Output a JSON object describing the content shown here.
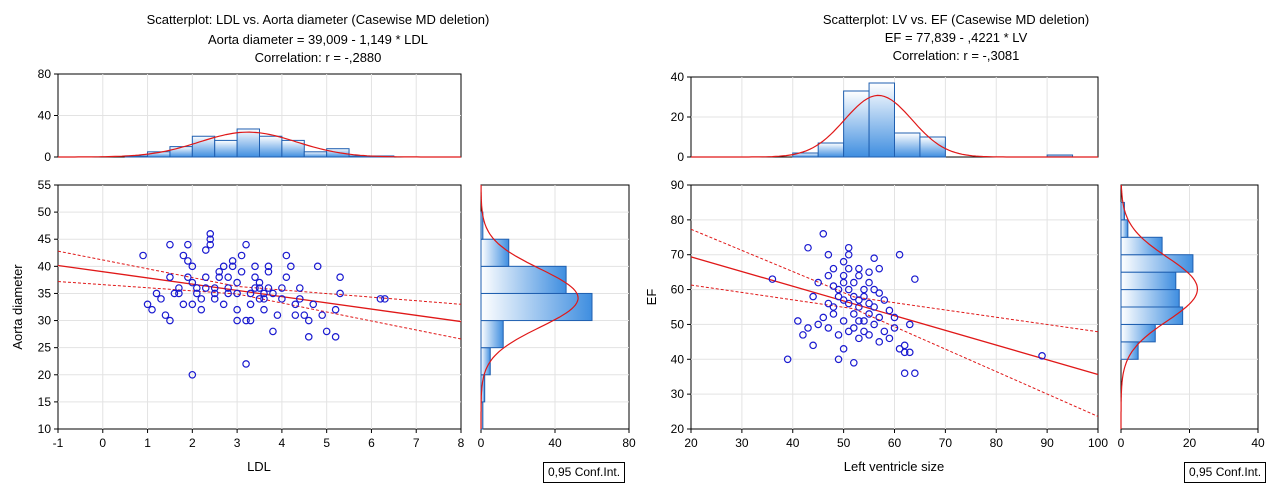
{
  "chart_data": [
    {
      "type": "scatter",
      "title": [
        "Scatterplot: LDL       vs. Aorta diameter (Casewise MD deletion)",
        "Aorta diameter = 39,009 - 1,149  * LDL",
        "Correlation: r = -,2880"
      ],
      "xlabel": "LDL",
      "ylabel": "Aorta diameter",
      "xlim": [
        -1,
        8
      ],
      "ylim": [
        10,
        55
      ],
      "xticks": [
        "-1",
        "0",
        "1",
        "2",
        "3",
        "4",
        "5",
        "6",
        "7",
        "8"
      ],
      "yticks": [
        "10",
        "15",
        "20",
        "25",
        "30",
        "35",
        "40",
        "45",
        "50",
        "55"
      ],
      "regression": {
        "intercept": 39.009,
        "slope": -1.149
      },
      "ci_band": {
        "lower_at_xmin": 37.2,
        "lower_at_xmax": 26.6,
        "upper_at_xmin": 42.8,
        "upper_at_xmax": 33.0,
        "lower_bend_x": 3.0,
        "lower_bend_y": 34.9,
        "upper_bend_x": 3.0,
        "upper_bend_y": 36.3
      },
      "legend": "0,95 Conf.Int.",
      "points": [
        [
          0.9,
          42
        ],
        [
          1.0,
          33
        ],
        [
          1.1,
          32
        ],
        [
          1.2,
          35
        ],
        [
          1.3,
          34
        ],
        [
          1.4,
          31
        ],
        [
          1.5,
          30
        ],
        [
          1.5,
          38
        ],
        [
          1.5,
          44
        ],
        [
          1.6,
          35
        ],
        [
          1.7,
          35
        ],
        [
          1.7,
          36
        ],
        [
          1.8,
          33
        ],
        [
          1.8,
          42
        ],
        [
          1.9,
          44
        ],
        [
          1.9,
          38
        ],
        [
          1.9,
          41
        ],
        [
          2.0,
          20
        ],
        [
          2.0,
          33
        ],
        [
          2.0,
          37
        ],
        [
          2.0,
          40
        ],
        [
          2.1,
          36
        ],
        [
          2.1,
          35
        ],
        [
          2.2,
          32
        ],
        [
          2.2,
          34
        ],
        [
          2.3,
          36
        ],
        [
          2.3,
          38
        ],
        [
          2.3,
          43
        ],
        [
          2.4,
          44
        ],
        [
          2.4,
          45
        ],
        [
          2.4,
          46
        ],
        [
          2.5,
          36
        ],
        [
          2.5,
          35
        ],
        [
          2.5,
          34
        ],
        [
          2.6,
          38
        ],
        [
          2.6,
          39
        ],
        [
          2.7,
          40
        ],
        [
          2.7,
          33
        ],
        [
          2.8,
          38
        ],
        [
          2.8,
          36
        ],
        [
          2.8,
          35
        ],
        [
          2.9,
          40
        ],
        [
          2.9,
          41
        ],
        [
          3.0,
          30
        ],
        [
          3.0,
          32
        ],
        [
          3.0,
          35
        ],
        [
          3.0,
          37
        ],
        [
          3.1,
          39
        ],
        [
          3.1,
          42
        ],
        [
          3.2,
          44
        ],
        [
          3.2,
          22
        ],
        [
          3.2,
          30
        ],
        [
          3.3,
          30
        ],
        [
          3.3,
          33
        ],
        [
          3.3,
          35
        ],
        [
          3.4,
          36
        ],
        [
          3.4,
          38
        ],
        [
          3.4,
          40
        ],
        [
          3.5,
          37
        ],
        [
          3.5,
          36
        ],
        [
          3.5,
          34
        ],
        [
          3.6,
          32
        ],
        [
          3.6,
          34
        ],
        [
          3.6,
          35
        ],
        [
          3.7,
          36
        ],
        [
          3.7,
          39
        ],
        [
          3.7,
          40
        ],
        [
          3.8,
          28
        ],
        [
          3.8,
          35
        ],
        [
          3.9,
          31
        ],
        [
          4.0,
          34
        ],
        [
          4.0,
          36
        ],
        [
          4.1,
          38
        ],
        [
          4.1,
          42
        ],
        [
          4.2,
          40
        ],
        [
          4.3,
          31
        ],
        [
          4.3,
          33
        ],
        [
          4.4,
          34
        ],
        [
          4.4,
          36
        ],
        [
          4.5,
          31
        ],
        [
          4.6,
          27
        ],
        [
          4.6,
          30
        ],
        [
          4.7,
          33
        ],
        [
          4.8,
          40
        ],
        [
          4.9,
          31
        ],
        [
          5.0,
          28
        ],
        [
          5.2,
          32
        ],
        [
          5.2,
          27
        ],
        [
          5.3,
          35
        ],
        [
          5.3,
          38
        ],
        [
          6.2,
          34
        ],
        [
          6.3,
          34
        ]
      ],
      "top_histogram": {
        "ylim": [
          0,
          80
        ],
        "yticks": [
          "0",
          "40",
          "80"
        ],
        "bins_x": [
          -0.5,
          0,
          0.5,
          1,
          1.5,
          2,
          2.5,
          3,
          3.5,
          4,
          4.5,
          5,
          5.5,
          6,
          6.5,
          7
        ],
        "counts": [
          0,
          0,
          1,
          5,
          10,
          20,
          16,
          27,
          20,
          16,
          5,
          8,
          1,
          1,
          0
        ]
      },
      "right_histogram": {
        "xlim": [
          0,
          80
        ],
        "xticks": [
          "0",
          "40",
          "80"
        ],
        "bins_y": [
          10,
          15,
          20,
          25,
          30,
          35,
          40,
          45,
          50
        ],
        "counts": [
          1,
          2,
          5,
          12,
          60,
          46,
          15,
          1
        ]
      }
    },
    {
      "type": "scatter",
      "title": [
        "Scatterplot: LV        vs. EF          (Casewise MD deletion)",
        "EF          = 77,839 - ,4221  * LV",
        "Correlation: r = -,3081"
      ],
      "xlabel": "Left ventricle size",
      "ylabel": "EF",
      "xlim": [
        20,
        100
      ],
      "ylim": [
        20,
        90
      ],
      "xticks": [
        "20",
        "30",
        "40",
        "50",
        "60",
        "70",
        "80",
        "90",
        "100"
      ],
      "yticks": [
        "20",
        "30",
        "40",
        "50",
        "60",
        "70",
        "80",
        "90"
      ],
      "regression": {
        "intercept": 77.839,
        "slope": -0.4221
      },
      "ci_band": {
        "lower_at_xmin": 61.3,
        "lower_at_xmax": 23.6,
        "upper_at_xmin": 77.3,
        "upper_at_xmax": 47.9,
        "lower_bend_x": 52,
        "lower_bend_y": 54.5,
        "upper_bend_x": 52,
        "upper_bend_y": 57.9
      },
      "legend": "0,95 Conf.Int.",
      "points": [
        [
          36,
          63
        ],
        [
          39,
          40
        ],
        [
          41,
          51
        ],
        [
          42,
          47
        ],
        [
          43,
          49
        ],
        [
          43,
          72
        ],
        [
          44,
          44
        ],
        [
          44,
          58
        ],
        [
          45,
          50
        ],
        [
          45,
          62
        ],
        [
          46,
          52
        ],
        [
          46,
          76
        ],
        [
          47,
          56
        ],
        [
          47,
          64
        ],
        [
          47,
          70
        ],
        [
          47,
          49
        ],
        [
          48,
          61
        ],
        [
          48,
          66
        ],
        [
          48,
          55
        ],
        [
          48,
          53
        ],
        [
          49,
          60
        ],
        [
          49,
          58
        ],
        [
          49,
          40
        ],
        [
          49,
          47
        ],
        [
          50,
          68
        ],
        [
          50,
          64
        ],
        [
          50,
          62
        ],
        [
          50,
          57
        ],
        [
          50,
          51
        ],
        [
          50,
          43
        ],
        [
          51,
          72
        ],
        [
          51,
          70
        ],
        [
          51,
          66
        ],
        [
          51,
          60
        ],
        [
          51,
          56
        ],
        [
          51,
          48
        ],
        [
          52,
          62
        ],
        [
          52,
          58
        ],
        [
          52,
          53
        ],
        [
          52,
          49
        ],
        [
          52,
          39
        ],
        [
          53,
          66
        ],
        [
          53,
          64
        ],
        [
          53,
          57
        ],
        [
          53,
          55
        ],
        [
          53,
          51
        ],
        [
          53,
          46
        ],
        [
          54,
          60
        ],
        [
          54,
          58
        ],
        [
          54,
          51
        ],
        [
          54,
          48
        ],
        [
          55,
          65
        ],
        [
          55,
          62
        ],
        [
          55,
          56
        ],
        [
          55,
          53
        ],
        [
          55,
          47
        ],
        [
          56,
          69
        ],
        [
          56,
          60
        ],
        [
          56,
          55
        ],
        [
          56,
          50
        ],
        [
          57,
          66
        ],
        [
          57,
          59
        ],
        [
          57,
          52
        ],
        [
          57,
          45
        ],
        [
          58,
          57
        ],
        [
          58,
          48
        ],
        [
          59,
          54
        ],
        [
          59,
          46
        ],
        [
          60,
          52
        ],
        [
          60,
          49
        ],
        [
          61,
          70
        ],
        [
          61,
          43
        ],
        [
          62,
          44
        ],
        [
          62,
          42
        ],
        [
          62,
          36
        ],
        [
          63,
          50
        ],
        [
          63,
          42
        ],
        [
          64,
          63
        ],
        [
          64,
          36
        ],
        [
          89,
          41
        ]
      ],
      "top_histogram": {
        "ylim": [
          0,
          40
        ],
        "yticks": [
          "0",
          "20",
          "40"
        ],
        "bins_x": [
          25,
          30,
          35,
          40,
          45,
          50,
          55,
          60,
          65,
          70,
          75,
          80,
          85,
          90,
          95
        ],
        "counts": [
          0,
          0,
          0,
          2,
          7,
          33,
          37,
          12,
          10,
          0,
          0,
          0,
          0,
          1
        ]
      },
      "right_histogram": {
        "xlim": [
          0,
          40
        ],
        "xticks": [
          "0",
          "20",
          "40"
        ],
        "bins_y": [
          20,
          25,
          30,
          35,
          40,
          45,
          50,
          55,
          60,
          65,
          70,
          75,
          80,
          85
        ],
        "counts": [
          0,
          0,
          0,
          0,
          5,
          10,
          18,
          17,
          16,
          21,
          12,
          2,
          1
        ]
      }
    }
  ]
}
